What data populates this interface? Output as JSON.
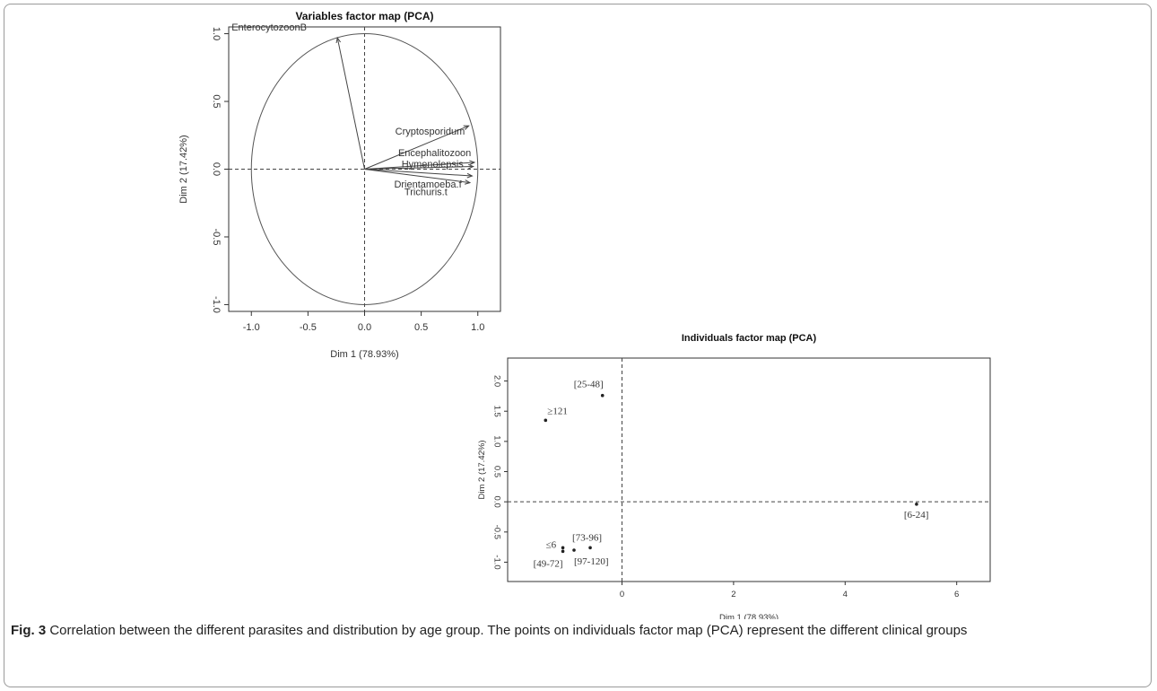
{
  "figure": {
    "caption_label": "Fig. 3",
    "caption_text": " Correlation between the different parasites and distribution by age group. The points on individuals factor map (PCA) represent the different clinical groups",
    "frame_color": "#9a9a9a"
  },
  "chart_data": [
    {
      "type": "scatter",
      "title": "Variables factor map (PCA)",
      "xlabel": "Dim 1 (78.93%)",
      "ylabel": "Dim 2 (17.42%)",
      "xlim": [
        -1.2,
        1.2
      ],
      "ylim": [
        -1.05,
        1.05
      ],
      "xticks": [
        -1.0,
        -0.5,
        0.0,
        0.5,
        1.0
      ],
      "xtick_labels": [
        "-1.0",
        "-0.5",
        "0.0",
        "0.5",
        "1.0"
      ],
      "yticks": [
        -1.0,
        -0.5,
        0.0,
        0.5,
        1.0
      ],
      "ytick_labels": [
        "-1.0",
        "-0.5",
        "0.0",
        "0.5",
        "1.0"
      ],
      "grid": false,
      "unit_circle": true,
      "reference_lines": [
        0,
        0
      ],
      "vectors": [
        {
          "label": "EnterocytozoonB",
          "x": -0.24,
          "y": 0.97
        },
        {
          "label": "Cryptosporidum",
          "x": 0.92,
          "y": 0.32
        },
        {
          "label": "Encephalitozoon",
          "x": 0.97,
          "y": 0.05
        },
        {
          "label": "Hymenolepsis",
          "x": 0.96,
          "y": 0.02
        },
        {
          "label": "Drientamoeba.f",
          "x": 0.95,
          "y": -0.05
        },
        {
          "label": "Trichuris.t",
          "x": 0.93,
          "y": -0.1
        }
      ]
    },
    {
      "type": "scatter",
      "title": "Individuals factor map (PCA)",
      "xlabel": "Dim 1 (78.93%)",
      "ylabel": "Dim 2 (17.42%)",
      "xlim": [
        -2.05,
        6.6
      ],
      "ylim": [
        -1.32,
        2.38
      ],
      "xticks": [
        0,
        2,
        4,
        6
      ],
      "xtick_labels": [
        "0",
        "2",
        "4",
        "6"
      ],
      "yticks": [
        -1.0,
        -0.5,
        0.0,
        0.5,
        1.0,
        1.5,
        2.0
      ],
      "ytick_labels": [
        "-1.0",
        "-0.5",
        "0.0",
        "0.5",
        "1.0",
        "1.5",
        "2.0"
      ],
      "grid": false,
      "reference_lines": [
        0,
        0
      ],
      "points": [
        {
          "label": "[25-48]",
          "x": -0.35,
          "y": 1.76
        },
        {
          "label": "≥121",
          "x": -1.37,
          "y": 1.35
        },
        {
          "label": "[6-24]",
          "x": 5.28,
          "y": -0.04
        },
        {
          "label": "[73-96]",
          "x": -0.57,
          "y": -0.76
        },
        {
          "label": "≤6",
          "x": -1.06,
          "y": -0.76
        },
        {
          "label": "[49-72]",
          "x": -1.06,
          "y": -0.82
        },
        {
          "label": "[97-120]",
          "x": -0.86,
          "y": -0.8
        }
      ]
    }
  ]
}
